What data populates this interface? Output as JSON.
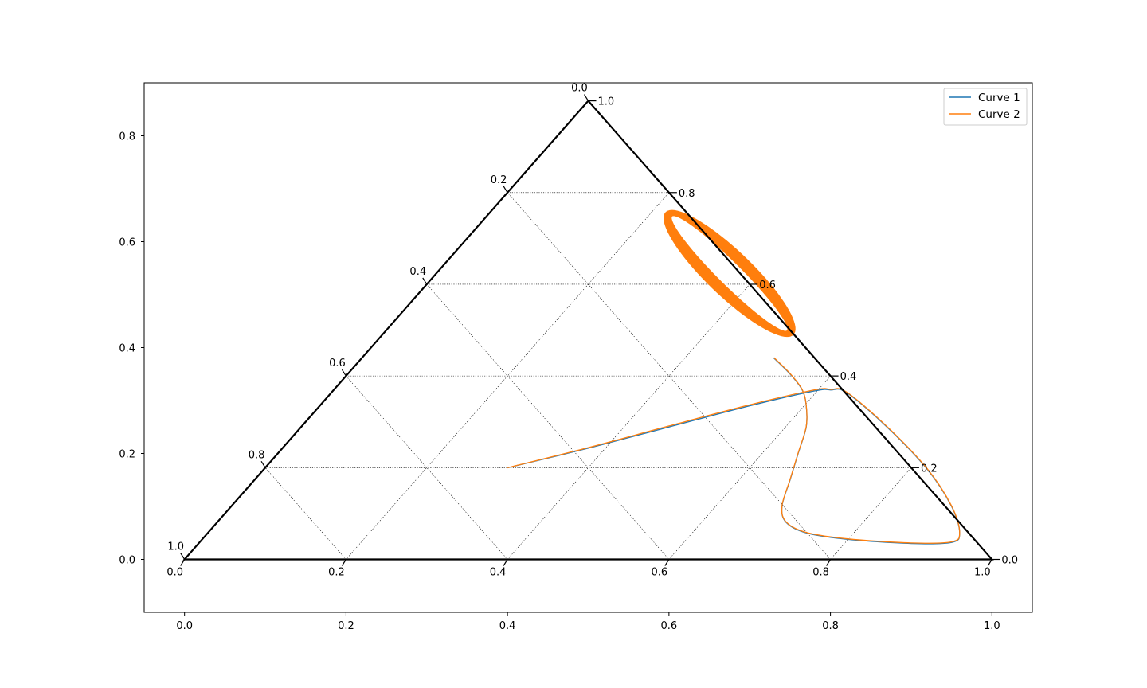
{
  "chart_data": {
    "type": "line",
    "plot_kind": "ternary",
    "xlim": [
      -0.05,
      1.05
    ],
    "ylim": [
      -0.1,
      0.9
    ],
    "x_ticks": [
      "0.0",
      "0.2",
      "0.4",
      "0.6",
      "0.8",
      "1.0"
    ],
    "y_ticks": [
      "0.0",
      "0.2",
      "0.4",
      "0.6",
      "0.8"
    ],
    "ternary": {
      "bottom_ticks": [
        "0.0",
        "0.2",
        "0.4",
        "0.6",
        "0.8",
        "1.0"
      ],
      "left_ticks": [
        "1.0",
        "0.8",
        "0.6",
        "0.4",
        "0.2",
        "0.0"
      ],
      "right_ticks": [
        "0.0",
        "0.2",
        "0.4",
        "0.6",
        "0.8",
        "1.0"
      ],
      "grid": true
    },
    "legend": {
      "position": "top-right"
    },
    "colors": {
      "curve1": "#1f77b4",
      "curve2": "#ff7f0e"
    },
    "series": [
      {
        "name": "Curve 1",
        "color": "#1f77b4",
        "x": [
          0.4,
          0.5,
          0.6,
          0.7,
          0.78,
          0.8,
          0.82,
          0.87,
          0.92,
          0.95,
          0.96,
          0.95,
          0.9,
          0.82,
          0.77,
          0.745,
          0.74,
          0.75,
          0.76,
          0.77,
          0.77,
          0.765,
          0.75,
          0.73
        ],
        "y": [
          0.173,
          0.21,
          0.25,
          0.29,
          0.318,
          0.32,
          0.315,
          0.25,
          0.17,
          0.1,
          0.05,
          0.032,
          0.03,
          0.038,
          0.05,
          0.07,
          0.1,
          0.15,
          0.2,
          0.25,
          0.29,
          0.32,
          0.35,
          0.38
        ]
      },
      {
        "name": "Curve 2",
        "color": "#ff7f0e",
        "x": [
          0.4,
          0.5,
          0.6,
          0.7,
          0.78,
          0.8,
          0.82,
          0.87,
          0.92,
          0.95,
          0.96,
          0.95,
          0.9,
          0.82,
          0.77,
          0.745,
          0.74,
          0.75,
          0.76,
          0.77,
          0.77,
          0.765,
          0.75,
          0.73
        ],
        "y": [
          0.173,
          0.211,
          0.252,
          0.292,
          0.32,
          0.321,
          0.316,
          0.251,
          0.171,
          0.101,
          0.051,
          0.033,
          0.031,
          0.039,
          0.051,
          0.071,
          0.101,
          0.151,
          0.201,
          0.251,
          0.291,
          0.321,
          0.351,
          0.381
        ]
      }
    ],
    "limit_cycle": {
      "series": "Curve 2",
      "center": [
        0.675,
        0.54
      ],
      "semi_major": 0.14,
      "semi_minor": 0.025,
      "angle_deg": -57
    }
  }
}
